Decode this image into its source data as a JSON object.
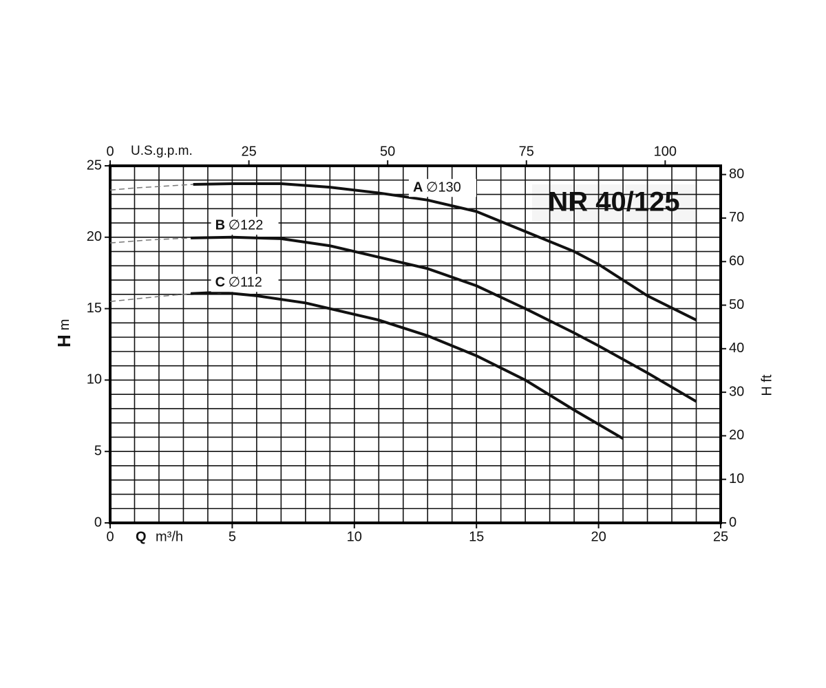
{
  "chart_data": {
    "type": "line",
    "title": "NR 40/125",
    "x_label": {
      "symbol": "Q",
      "unit": "m³/h"
    },
    "y_label": {
      "symbol": "H",
      "unit": "m"
    },
    "y2_label": "H ft",
    "x2_label": "U.S.g.p.m.",
    "xlim": [
      0,
      25
    ],
    "xticks": [
      0,
      5,
      10,
      15,
      20,
      25
    ],
    "ylim": [
      0,
      25
    ],
    "yticks": [
      0,
      5,
      10,
      15,
      20,
      25
    ],
    "x2lim": [
      0,
      110
    ],
    "x2ticks": [
      0,
      25,
      50,
      75,
      100
    ],
    "y2lim": [
      0,
      82
    ],
    "y2ticks": [
      0,
      10,
      20,
      30,
      40,
      50,
      60,
      70,
      80
    ],
    "xgrid": [
      1,
      2,
      3,
      4,
      5,
      6,
      7,
      8,
      9,
      10,
      11,
      12,
      13,
      14,
      15,
      16,
      17,
      18,
      19,
      20,
      21,
      22,
      23,
      24
    ],
    "ygrid": [
      1,
      2,
      3,
      4,
      5,
      6,
      7,
      8,
      9,
      10,
      11,
      12,
      13,
      14,
      15,
      16,
      17,
      18,
      19,
      20,
      21,
      22,
      23,
      24
    ],
    "grid": true,
    "series": [
      {
        "name": "A",
        "diameter": "∅130",
        "color": "#111111",
        "dashed_x": [
          0,
          1,
          2,
          3.4
        ],
        "dashed_values": [
          23.3,
          23.45,
          23.55,
          23.7
        ],
        "x": [
          3.4,
          5,
          7,
          9,
          11,
          13,
          15,
          17,
          19,
          20,
          21,
          22,
          24
        ],
        "values": [
          23.7,
          23.75,
          23.75,
          23.5,
          23.1,
          22.6,
          21.8,
          20.4,
          19.0,
          18.1,
          17.0,
          15.9,
          14.2
        ]
      },
      {
        "name": "B",
        "diameter": "∅122",
        "color": "#111111",
        "dashed_x": [
          0,
          1.5,
          3.3
        ],
        "dashed_values": [
          19.6,
          19.8,
          19.95
        ],
        "x": [
          3.3,
          5,
          7,
          9,
          11,
          13,
          15,
          17,
          19,
          20,
          22,
          24
        ],
        "values": [
          19.95,
          20.0,
          19.9,
          19.4,
          18.6,
          17.8,
          16.6,
          15.0,
          13.3,
          12.4,
          10.5,
          8.5
        ]
      },
      {
        "name": "C",
        "diameter": "∅112",
        "color": "#111111",
        "dashed_x": [
          0,
          2,
          3.3
        ],
        "dashed_values": [
          15.5,
          15.85,
          16.05
        ],
        "x": [
          3.3,
          4.5,
          6,
          8,
          10,
          11,
          13,
          15,
          17,
          19,
          21
        ],
        "values": [
          16.05,
          16.15,
          15.9,
          15.4,
          14.6,
          14.2,
          13.1,
          11.7,
          10.0,
          7.9,
          5.9
        ]
      }
    ]
  }
}
